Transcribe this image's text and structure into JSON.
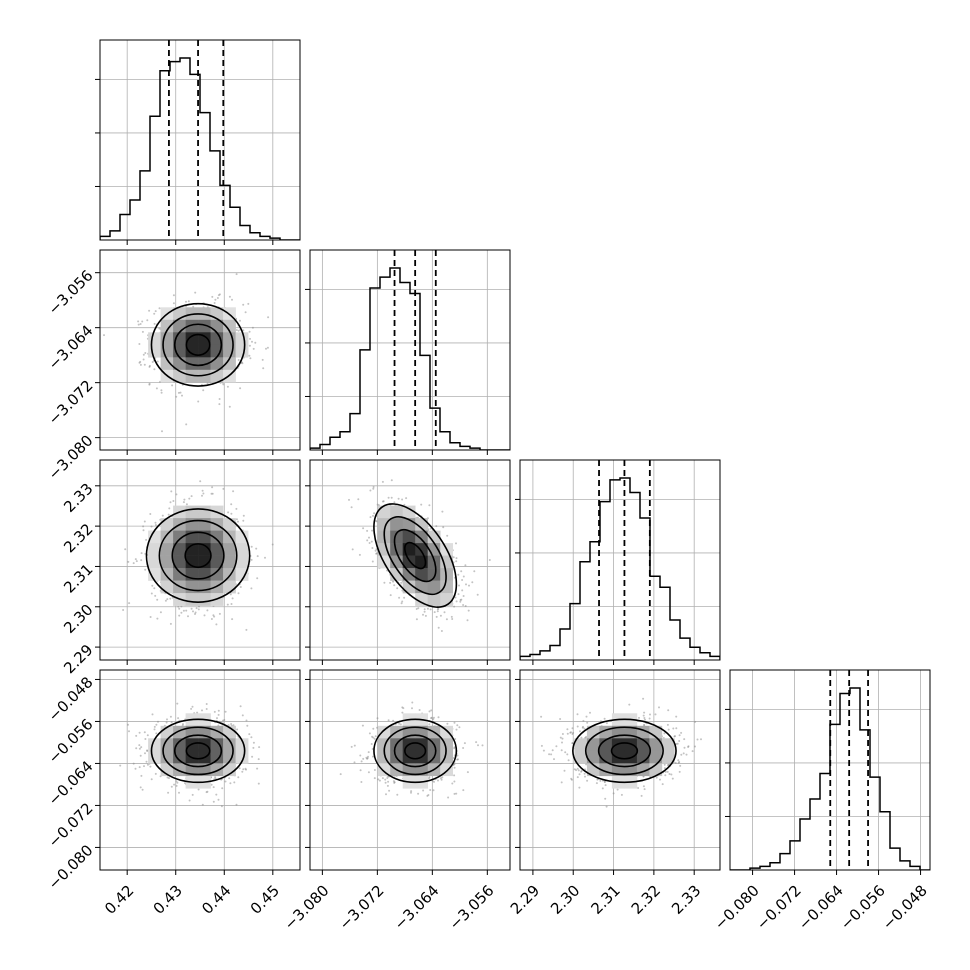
{
  "chart_data": {
    "type": "corner",
    "grid": true,
    "n_params": 4,
    "params": [
      {
        "mean": 0.4346,
        "sd": 0.0048,
        "range": [
          0.4144,
          0.4556
        ],
        "ticks": [
          0.42,
          0.43,
          0.44,
          0.45
        ],
        "tick_labels": [
          "0.42",
          "0.43",
          "0.44",
          "0.45"
        ],
        "quantiles": [
          0.4286,
          0.4346,
          0.4398
        ],
        "hist_bins": 20,
        "hist_counts": [
          2,
          5,
          14,
          22,
          38,
          68,
          93,
          98,
          100,
          91,
          70,
          49,
          30,
          18,
          8,
          4,
          2,
          1,
          0,
          0
        ]
      },
      {
        "mean": -3.0665,
        "sd": 0.003,
        "range": [
          -3.0818,
          -3.0527
        ],
        "ticks": [
          -3.08,
          -3.072,
          -3.064,
          -3.056
        ],
        "tick_labels": [
          "−3.080",
          "−3.072",
          "−3.064",
          "−3.056"
        ],
        "quantiles": [
          -3.0695,
          -3.0665,
          -3.0635
        ],
        "hist_bins": 20,
        "hist_counts": [
          1,
          3,
          7,
          10,
          20,
          55,
          89,
          95,
          100,
          92,
          86,
          52,
          23,
          10,
          4,
          2,
          1,
          0,
          0,
          0
        ]
      },
      {
        "mean": 2.3127,
        "sd": 0.0064,
        "range": [
          2.2868,
          2.3364
        ],
        "ticks": [
          2.29,
          2.3,
          2.31,
          2.32,
          2.33
        ],
        "tick_labels": [
          "2.29",
          "2.30",
          "2.31",
          "2.32",
          "2.33"
        ],
        "quantiles": [
          2.3064,
          2.3127,
          2.319
        ],
        "hist_bins": 20,
        "hist_counts": [
          2,
          3,
          5,
          8,
          17,
          31,
          54,
          65,
          87,
          99,
          100,
          92,
          78,
          46,
          40,
          22,
          12,
          7,
          4,
          2
        ]
      },
      {
        "mean": -0.0616,
        "sd": 0.003,
        "range": [
          -0.0843,
          -0.0462
        ],
        "ticks": [
          -0.08,
          -0.072,
          -0.064,
          -0.056,
          -0.048
        ],
        "tick_labels": [
          "−0.080",
          "−0.072",
          "−0.064",
          "−0.056",
          "−0.048"
        ],
        "quantiles": [
          -0.0652,
          -0.0616,
          -0.058
        ],
        "hist_bins": 20,
        "hist_counts": [
          0,
          0,
          1,
          2,
          4,
          9,
          16,
          28,
          39,
          53,
          80,
          97,
          100,
          77,
          51,
          32,
          12,
          5,
          2,
          0
        ]
      }
    ],
    "correlations": [
      [
        1,
        0,
        0,
        0
      ],
      [
        0,
        1,
        -0.55,
        0
      ],
      [
        0,
        -0.55,
        1,
        0
      ],
      [
        0,
        0,
        0,
        1
      ]
    ],
    "contour_levels_sigma": [
      0.5,
      1.0,
      1.5,
      2.0
    ],
    "colors": {
      "line": "#000000",
      "points": "#888888",
      "grid": "#b0b0b0"
    }
  }
}
